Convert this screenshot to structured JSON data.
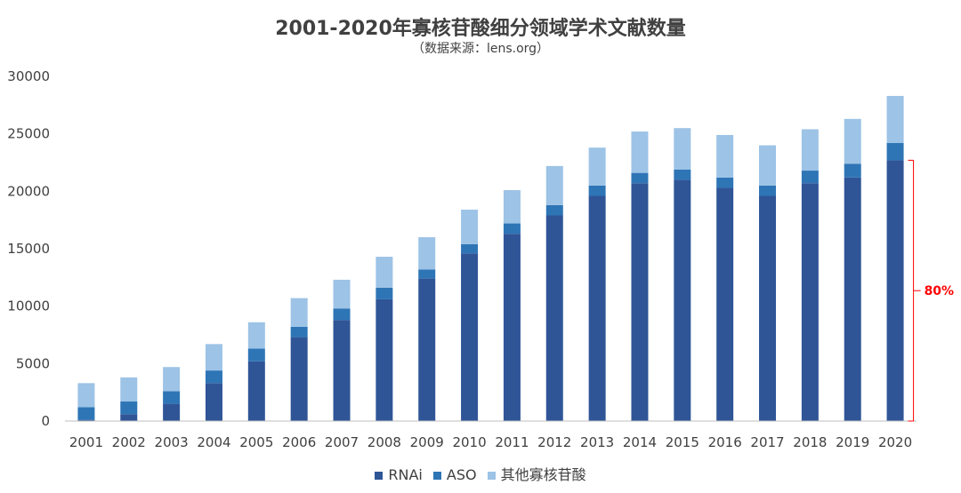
{
  "colors": {
    "rnai": "#2f5597",
    "aso": "#2e75b6",
    "other": "#9dc3e6",
    "annotation": "#ff0000",
    "text": "#404040",
    "axis": "#bfbfbf"
  },
  "chart_data": {
    "type": "bar",
    "stacked": true,
    "title": "2001-2020年寡核苷酸细分领域学术文献数量",
    "subtitle": "（数据来源：lens.org）",
    "xlabel": "",
    "ylabel": "",
    "ylim": [
      0,
      30000
    ],
    "yticks": [
      0,
      5000,
      10000,
      15000,
      20000,
      25000,
      30000
    ],
    "grid": false,
    "legend_position": "bottom",
    "categories": [
      "2001",
      "2002",
      "2003",
      "2004",
      "2005",
      "2006",
      "2007",
      "2008",
      "2009",
      "2010",
      "2011",
      "2012",
      "2013",
      "2014",
      "2015",
      "2016",
      "2017",
      "2018",
      "2019",
      "2020"
    ],
    "series": [
      {
        "name": "RNAi",
        "values": [
          100,
          600,
          1500,
          3300,
          5200,
          7300,
          8800,
          10600,
          12400,
          14600,
          16300,
          17900,
          19600,
          20700,
          21000,
          20300,
          19600,
          20700,
          21200,
          22700
        ]
      },
      {
        "name": "ASO",
        "values": [
          1100,
          1100,
          1100,
          1100,
          1100,
          900,
          1000,
          1000,
          800,
          800,
          900,
          900,
          900,
          900,
          900,
          900,
          900,
          1100,
          1200,
          1500
        ]
      },
      {
        "name": "其他寡核苷酸",
        "values": [
          2100,
          2100,
          2100,
          2300,
          2300,
          2500,
          2500,
          2700,
          2800,
          3000,
          2900,
          3400,
          3300,
          3600,
          3600,
          3700,
          3500,
          3600,
          3900,
          4100
        ]
      }
    ],
    "annotation": {
      "label": "80%",
      "from_value": 0,
      "to_value": 22700,
      "category": "2020"
    }
  }
}
